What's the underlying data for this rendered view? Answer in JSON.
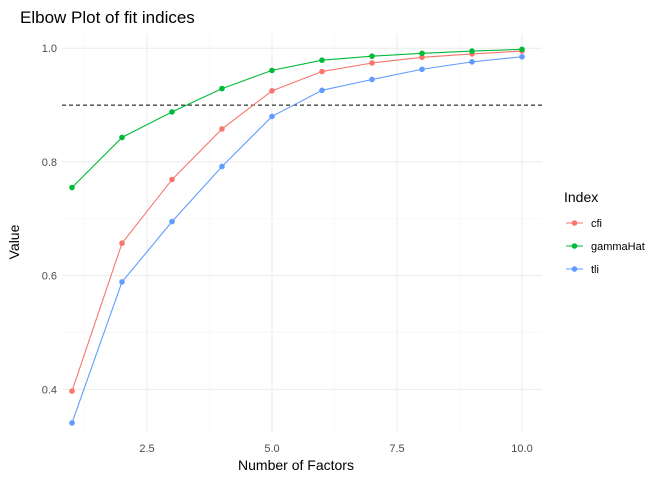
{
  "chart_data": {
    "type": "line",
    "title": "Elbow Plot of fit indices",
    "xlabel": "Number of Factors",
    "ylabel": "Value",
    "x": [
      1,
      2,
      3,
      4,
      5,
      6,
      7,
      8,
      9,
      10
    ],
    "xticks": [
      "2.5",
      "5.0",
      "7.5",
      "10.0"
    ],
    "yticks": [
      "0.4",
      "0.6",
      "0.8",
      "1.0"
    ],
    "xlim": [
      0.8,
      10.4
    ],
    "ylim": [
      0.325,
      1.025
    ],
    "grid": true,
    "reference_line": {
      "y": 0.9,
      "style": "dashed",
      "color": "#000000"
    },
    "legend": {
      "title": "Index",
      "position": "right"
    },
    "series": [
      {
        "name": "cfi",
        "color": "#F8766D",
        "values": [
          0.397,
          0.657,
          0.769,
          0.858,
          0.925,
          0.959,
          0.974,
          0.984,
          0.99,
          0.995
        ]
      },
      {
        "name": "gammaHat",
        "color": "#00BA38",
        "values": [
          0.755,
          0.843,
          0.888,
          0.929,
          0.961,
          0.979,
          0.986,
          0.991,
          0.995,
          0.998
        ]
      },
      {
        "name": "tli",
        "color": "#619CFF",
        "values": [
          0.341,
          0.589,
          0.695,
          0.792,
          0.88,
          0.926,
          0.945,
          0.963,
          0.976,
          0.985
        ]
      }
    ]
  }
}
